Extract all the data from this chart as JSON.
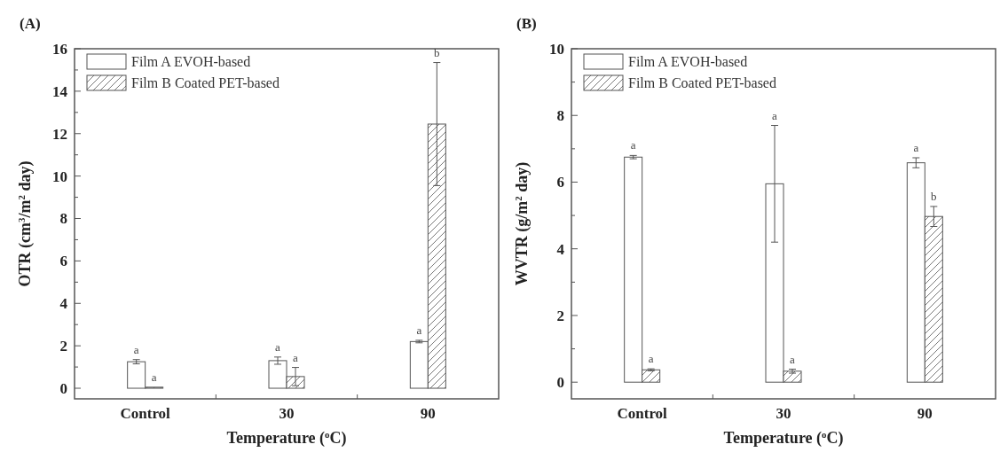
{
  "chart_data": [
    {
      "type": "bar",
      "title": "(A)",
      "xlabel": "Temperature ($^{o}$C)",
      "ylabel": "OTR (cm$^{3}$/m$^{2}$ day)",
      "categories": [
        "Control",
        "30",
        "90"
      ],
      "series": [
        {
          "name": "Film A EVOH-based",
          "color": "#ffffff",
          "values": [
            1.25,
            1.3,
            2.2
          ],
          "errors": [
            0.1,
            0.17,
            0.06
          ]
        },
        {
          "name": "Film B Coated PET-based",
          "color": "#555555",
          "values": [
            0.05,
            0.55,
            12.45
          ],
          "errors": [
            null,
            0.43,
            2.9
          ]
        }
      ],
      "ylim": [
        -0.5,
        16
      ],
      "yticks": [
        0,
        {
          "value": 1,
          "label": null
        },
        2,
        {
          "value": 3,
          "label": null
        },
        4,
        {
          "value": 5,
          "label": null
        },
        6,
        {
          "value": 7,
          "label": null
        },
        8,
        {
          "value": 9,
          "label": null
        },
        10,
        {
          "value": 11,
          "label": null
        },
        12,
        {
          "value": 13,
          "label": null
        },
        14,
        {
          "value": 15,
          "label": null
        },
        16
      ],
      "legend": "top left",
      "grid": false,
      "annotations": [
        "a",
        "a",
        "a",
        "a",
        "a",
        "b"
      ]
    },
    {
      "type": "bar",
      "title": "(B)",
      "xlabel": "Temperature ($^{o}$C)",
      "ylabel": "WVTR (g/m$^{2}$ day)",
      "categories": [
        "Control",
        "30",
        "90"
      ],
      "series": [
        {
          "name": "Film A EVOH-based",
          "color": "#ffffff",
          "values": [
            6.75,
            5.95,
            6.58
          ],
          "errors": [
            0.05,
            1.75,
            0.15
          ]
        },
        {
          "name": "Film B Coated PET-based",
          "color": "#555555",
          "values": [
            0.37,
            0.33,
            4.97
          ],
          "errors": [
            0.03,
            0.06,
            0.3
          ]
        }
      ],
      "ylim": [
        -0.5,
        10
      ],
      "yticks": [
        0,
        {
          "value": 1,
          "label": null
        },
        2,
        {
          "value": 3,
          "label": null
        },
        4,
        {
          "value": 5,
          "label": null
        },
        6,
        {
          "value": 7,
          "label": null
        },
        8,
        {
          "value": 9,
          "label": null
        },
        10
      ],
      "legend": "top left",
      "grid": false,
      "annotations": [
        "a",
        "a",
        "a",
        "a",
        "a",
        "b"
      ]
    }
  ]
}
